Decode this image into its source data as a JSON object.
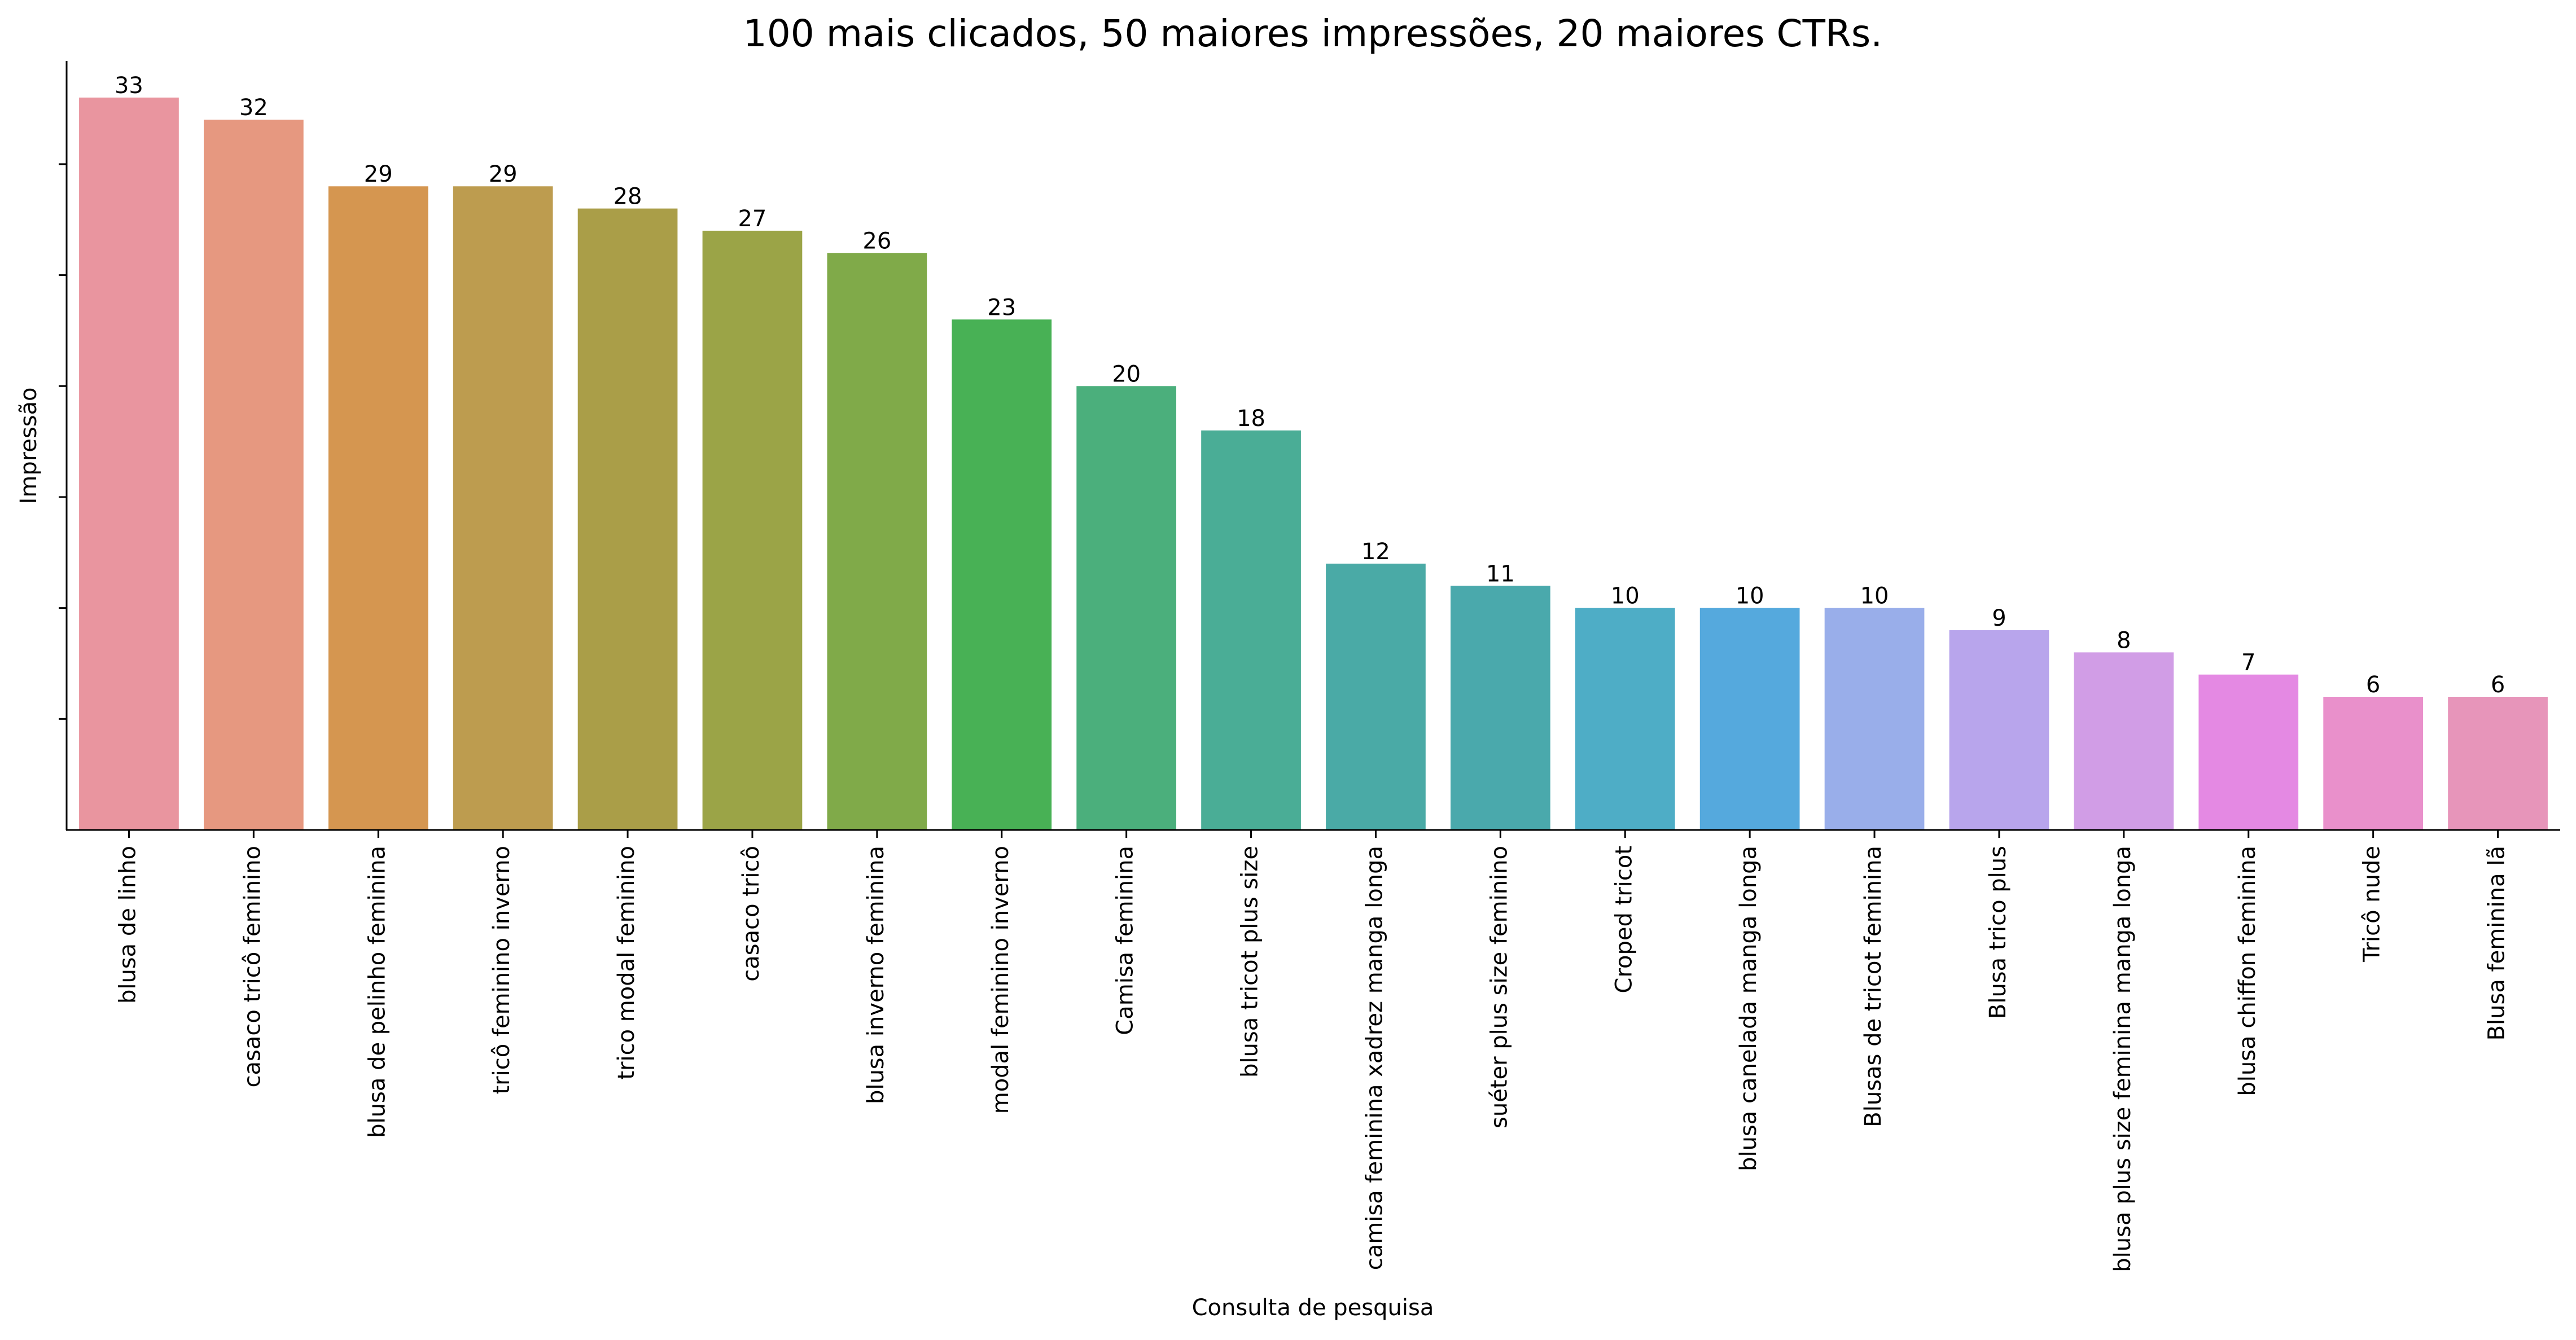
{
  "chart_data": {
    "type": "bar",
    "title": "100 mais clicados, 50 maiores impressões, 20 maiores CTRs.",
    "xlabel": "Consulta de pesquisa",
    "ylabel": "Impressão",
    "ylim": [
      0,
      34.65
    ],
    "y_tick_values": [
      5,
      10,
      15,
      20,
      25,
      30
    ],
    "y_tick_labels_shown": false,
    "grid": false,
    "legend": "none",
    "show_value_labels": true,
    "categories": [
      "blusa de linho",
      "casaco tricô feminino",
      "blusa de pelinho feminina",
      "tricô feminino inverno",
      "trico modal feminino",
      "casaco tricô",
      "blusa inverno feminina",
      "modal feminino inverno",
      "Camisa feminina",
      "blusa tricot plus size",
      "camisa feminina xadrez manga longa",
      "suéter plus size feminino",
      "Croped tricot",
      "blusa canelada manga longa",
      "Blusas de tricot feminina",
      "Blusa trico plus",
      "blusa plus size feminina manga longa",
      "blusa chiffon feminina",
      "Tricô nude",
      "Blusa feminina lã"
    ],
    "values": [
      33,
      32,
      29,
      29,
      28,
      27,
      26,
      23,
      20,
      18,
      12,
      11,
      10,
      10,
      10,
      9,
      8,
      7,
      6,
      6
    ],
    "colors": [
      "#e9959f",
      "#e69880",
      "#d59650",
      "#bd9c4f",
      "#aa9e48",
      "#9ba447",
      "#80aa49",
      "#48b155",
      "#4baf7c",
      "#4aad96",
      "#4aaaa6",
      "#4aa9ac",
      "#4eadc6",
      "#55a9dd",
      "#99aeea",
      "#b8a5ec",
      "#d19de6",
      "#e489e3",
      "#e990cb",
      "#e795ba"
    ]
  }
}
